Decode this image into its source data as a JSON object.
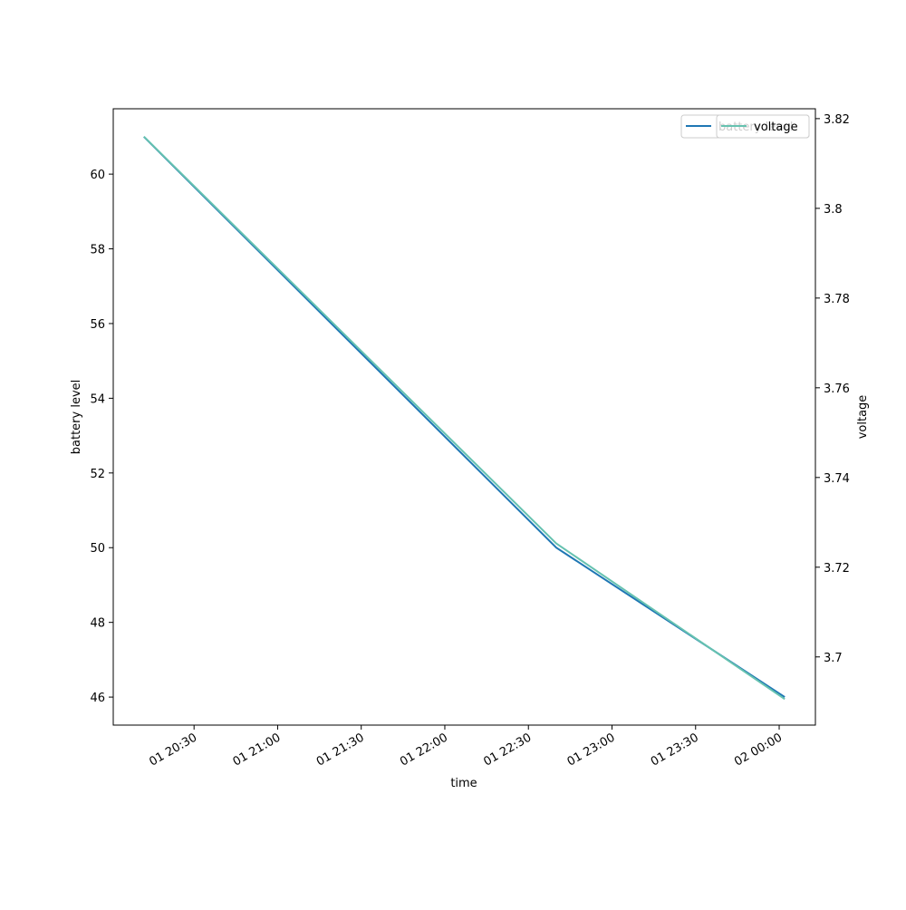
{
  "chart_data": {
    "type": "line",
    "xlabel": "time",
    "ylabel": "battery level",
    "y2label": "voltage",
    "x": [
      "01 20:12",
      "01 22:40",
      "02 00:02"
    ],
    "series": [
      {
        "name": "battery level",
        "color": "#1f77b4",
        "values": [
          61,
          50,
          46
        ]
      },
      {
        "name": "voltage",
        "color": "#66c2b0",
        "axis": "y2",
        "values": [
          3.816,
          3.7253,
          3.6906
        ]
      }
    ],
    "xlim": [
      "01 20:01",
      "02 00:13"
    ],
    "xticks": [
      "01 20:30",
      "01 21:00",
      "01 21:30",
      "01 22:00",
      "01 22:30",
      "01 23:00",
      "01 23:30",
      "02 00:00"
    ],
    "ylim": [
      45.25,
      61.75
    ],
    "yticks": [
      46,
      48,
      50,
      52,
      54,
      56,
      58,
      60
    ],
    "y2lim": [
      3.6848,
      3.8222
    ],
    "y2ticks": [
      3.7,
      3.72,
      3.74,
      3.76,
      3.78,
      3.8,
      3.82
    ],
    "legend": "upper right"
  }
}
